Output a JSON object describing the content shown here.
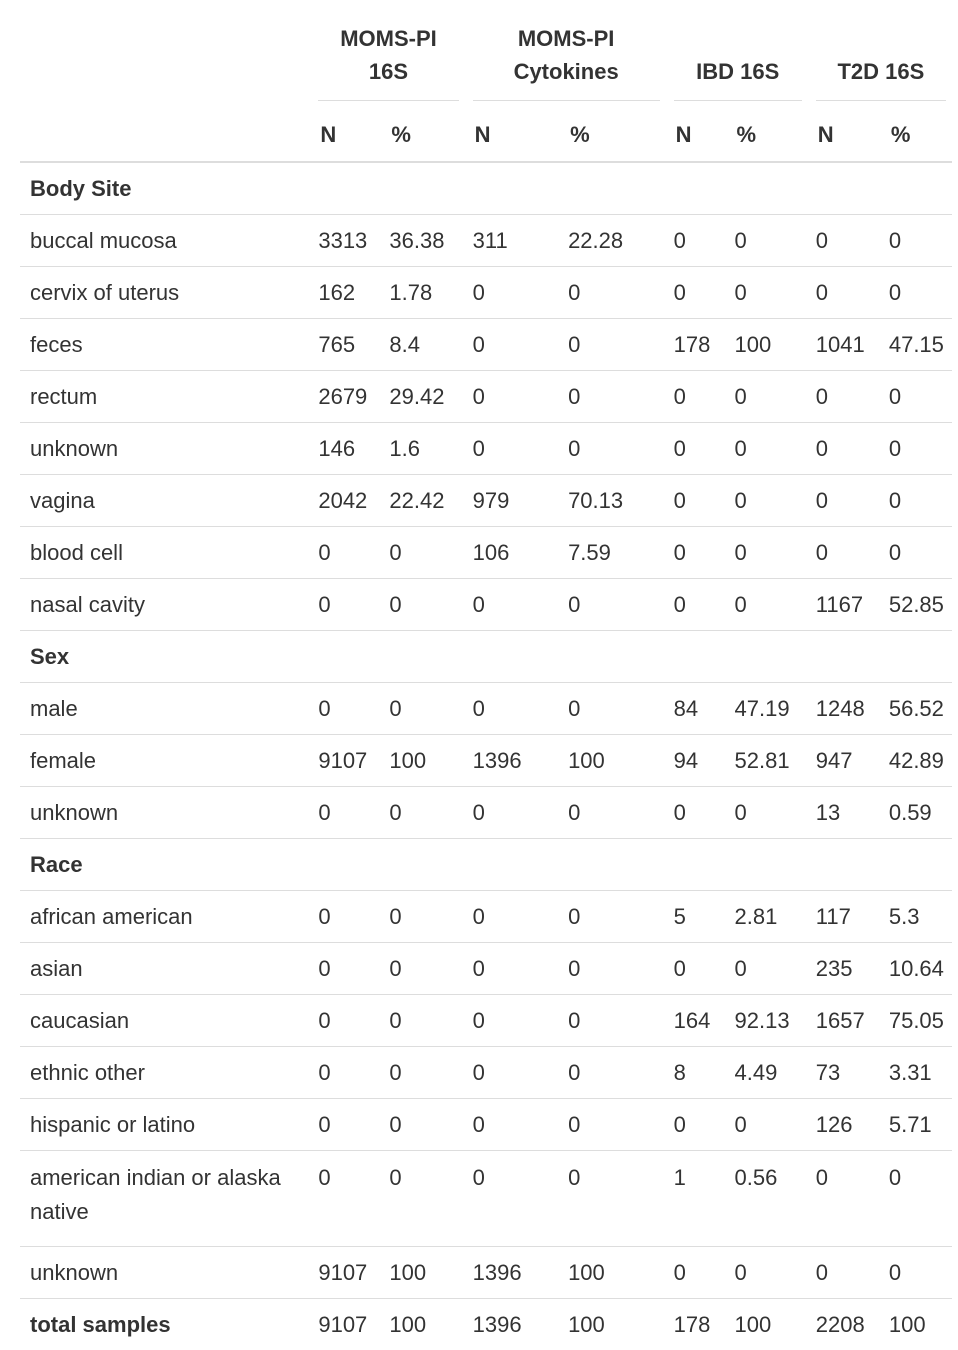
{
  "columns": {
    "groups": [
      "MOMS-PI\n16S",
      "MOMS-PI\nCytokines",
      "IBD 16S",
      "T2D 16S"
    ],
    "group_lines": [
      [
        "MOMS-PI",
        "16S"
      ],
      [
        "MOMS-PI",
        "Cytokines"
      ],
      [
        "IBD 16S"
      ],
      [
        "T2D 16S"
      ]
    ],
    "sub": [
      "N",
      "%",
      "N",
      "%",
      "N",
      "%",
      "N",
      "%"
    ]
  },
  "rows": [
    {
      "type": "section",
      "label": "Body Site"
    },
    {
      "type": "data",
      "label": "buccal mucosa",
      "values": [
        "3313",
        "36.38",
        "311",
        "22.28",
        "0",
        "0",
        "0",
        "0"
      ]
    },
    {
      "type": "data",
      "label": "cervix of uterus",
      "values": [
        "162",
        "1.78",
        "0",
        "0",
        "0",
        "0",
        "0",
        "0"
      ]
    },
    {
      "type": "data",
      "label": "feces",
      "values": [
        "765",
        "8.4",
        "0",
        "0",
        "178",
        "100",
        "1041",
        "47.15"
      ]
    },
    {
      "type": "data",
      "label": "rectum",
      "values": [
        "2679",
        "29.42",
        "0",
        "0",
        "0",
        "0",
        "0",
        "0"
      ]
    },
    {
      "type": "data",
      "label": "unknown",
      "values": [
        "146",
        "1.6",
        "0",
        "0",
        "0",
        "0",
        "0",
        "0"
      ]
    },
    {
      "type": "data",
      "label": "vagina",
      "values": [
        "2042",
        "22.42",
        "979",
        "70.13",
        "0",
        "0",
        "0",
        "0"
      ]
    },
    {
      "type": "data",
      "label": "blood cell",
      "values": [
        "0",
        "0",
        "106",
        "7.59",
        "0",
        "0",
        "0",
        "0"
      ]
    },
    {
      "type": "data",
      "label": "nasal cavity",
      "values": [
        "0",
        "0",
        "0",
        "0",
        "0",
        "0",
        "1167",
        "52.85"
      ]
    },
    {
      "type": "section",
      "label": "Sex"
    },
    {
      "type": "data",
      "label": "male",
      "values": [
        "0",
        "0",
        "0",
        "0",
        "84",
        "47.19",
        "1248",
        "56.52"
      ]
    },
    {
      "type": "data",
      "label": "female",
      "values": [
        "9107",
        "100",
        "1396",
        "100",
        "94",
        "52.81",
        "947",
        "42.89"
      ]
    },
    {
      "type": "data",
      "label": "unknown",
      "values": [
        "0",
        "0",
        "0",
        "0",
        "0",
        "0",
        "13",
        "0.59"
      ]
    },
    {
      "type": "section",
      "label": "Race"
    },
    {
      "type": "data",
      "label": "african american",
      "values": [
        "0",
        "0",
        "0",
        "0",
        "5",
        "2.81",
        "117",
        "5.3"
      ]
    },
    {
      "type": "data",
      "label": "asian",
      "values": [
        "0",
        "0",
        "0",
        "0",
        "0",
        "0",
        "235",
        "10.64"
      ]
    },
    {
      "type": "data",
      "label": "caucasian",
      "values": [
        "0",
        "0",
        "0",
        "0",
        "164",
        "92.13",
        "1657",
        "75.05"
      ]
    },
    {
      "type": "data",
      "label": "ethnic other",
      "values": [
        "0",
        "0",
        "0",
        "0",
        "8",
        "4.49",
        "73",
        "3.31"
      ]
    },
    {
      "type": "data",
      "label": "hispanic or latino",
      "values": [
        "0",
        "0",
        "0",
        "0",
        "0",
        "0",
        "126",
        "5.71"
      ]
    },
    {
      "type": "data",
      "label": "american indian or alaska native",
      "values": [
        "0",
        "0",
        "0",
        "0",
        "1",
        "0.56",
        "0",
        "0"
      ],
      "tall": true
    },
    {
      "type": "data",
      "label": "unknown",
      "values": [
        "9107",
        "100",
        "1396",
        "100",
        "0",
        "0",
        "0",
        "0"
      ]
    },
    {
      "type": "total",
      "label": "total samples",
      "values": [
        "9107",
        "100",
        "1396",
        "100",
        "178",
        "100",
        "2208",
        "100"
      ]
    }
  ]
}
